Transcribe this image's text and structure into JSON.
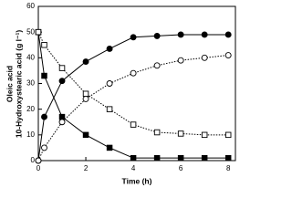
{
  "chart_data": {
    "type": "line",
    "ylabel": [
      "Oleic acid",
      "10-Hydroxystearic acid (g l⁻¹)"
    ],
    "xlabel": "Time (h)",
    "x": [
      0,
      0.25,
      1,
      2,
      3,
      4,
      5,
      6,
      7,
      8
    ],
    "series": [
      {
        "color": "#000000",
        "marker": "circle",
        "filled": true,
        "dashed": false,
        "values": [
          0,
          17,
          31,
          38.5,
          43.5,
          48,
          48.5,
          49,
          49,
          49
        ]
      },
      {
        "color": "#000000",
        "marker": "square",
        "filled": true,
        "dashed": false,
        "values": [
          50,
          33,
          17,
          10,
          5,
          1,
          1,
          1,
          1,
          1
        ]
      },
      {
        "color": "#000000",
        "marker": "square",
        "filled": false,
        "dashed": true,
        "values": [
          50,
          45,
          36,
          26,
          20,
          14,
          11,
          10.5,
          10,
          10
        ]
      },
      {
        "color": "#000000",
        "marker": "circle",
        "filled": false,
        "dashed": true,
        "values": [
          0,
          5,
          15,
          24,
          30,
          34,
          37,
          39,
          40,
          41
        ]
      }
    ],
    "xlim": [
      0,
      8.3
    ],
    "xticks": [
      0,
      2,
      4,
      6,
      8
    ],
    "ylim": [
      0,
      60
    ],
    "yticks": [
      0,
      10,
      20,
      30,
      40,
      50,
      60
    ]
  }
}
